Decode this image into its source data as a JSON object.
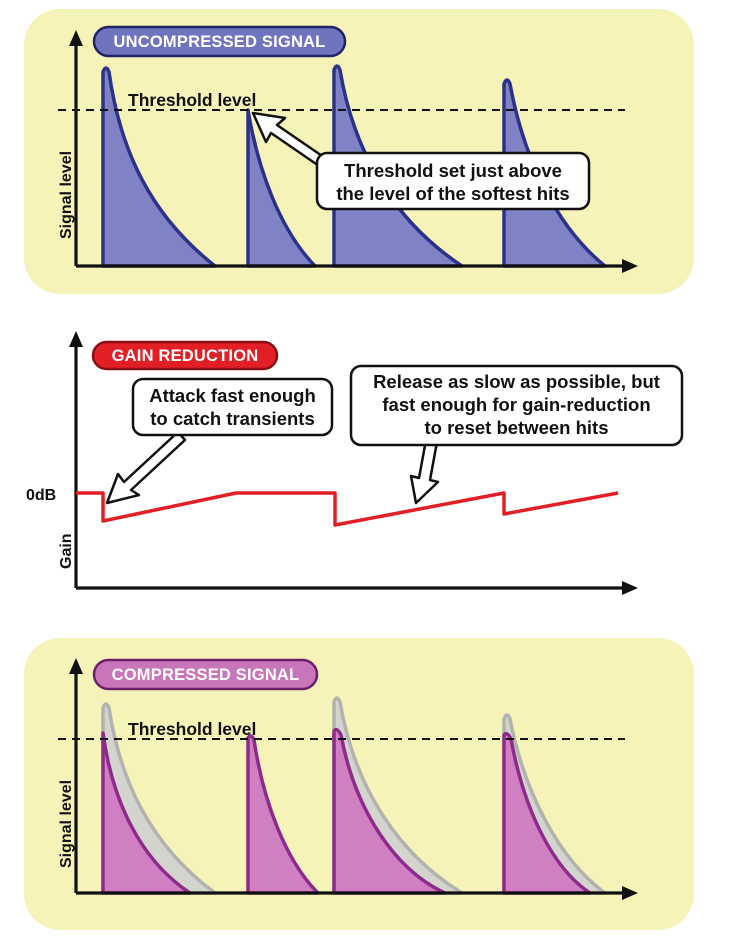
{
  "colors": {
    "panel_bg": "#f6f3b9",
    "uncompressed_fill": "#7f83c6",
    "uncompressed_stroke": "#2c3288",
    "uncompressed_pill": "#6f74bf",
    "gain_line": "#e31f26",
    "gain_pill": "#e31f26",
    "compressed_fill": "#d07fc3",
    "compressed_stroke": "#8d2b8b",
    "compressed_pill": "#c975ba",
    "ghost_fill": "#d4d4cf",
    "ghost_stroke": "#b3b3ae"
  },
  "uncompressed": {
    "pill_label": "UNCOMPRESSED SIGNAL",
    "threshold_label": "Threshold level",
    "y_axis_label": "Signal level",
    "callout": [
      "Threshold set just above",
      "the level of the softest hits"
    ]
  },
  "gain": {
    "pill_label": "GAIN REDUCTION",
    "zero_db_label": "0dB",
    "y_axis_label": "Gain",
    "callout_attack": [
      "Attack fast enough",
      "to catch transients"
    ],
    "callout_release": [
      "Release as slow as possible, but",
      "fast enough for gain-reduction",
      "to reset between hits"
    ]
  },
  "compressed": {
    "pill_label": "COMPRESSED SIGNAL",
    "threshold_label": "Threshold level",
    "y_axis_label": "Signal level"
  }
}
